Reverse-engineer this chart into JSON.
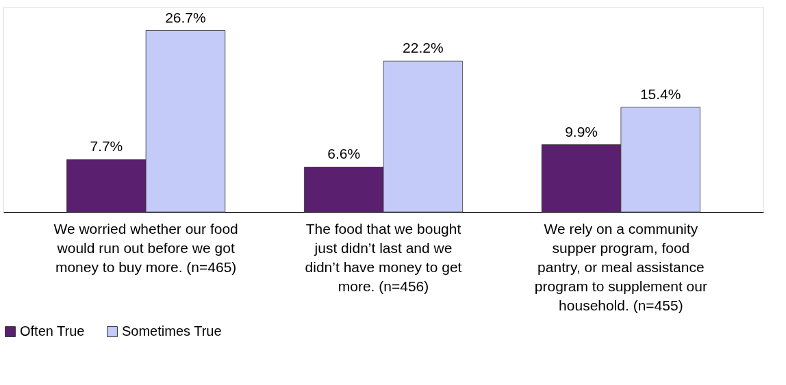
{
  "chart_data": {
    "type": "bar",
    "categories": [
      "We worried whether our food would run out before we got money to buy more. (n=465)",
      "The food that we bought just didn’t last and we didn’t have money to get more. (n=456)",
      "We rely on a community supper program, food pantry, or meal assistance program to supplement our household. (n=455)"
    ],
    "series": [
      {
        "name": "Often True",
        "color": "#5a1f6e",
        "values": [
          7.7,
          6.6,
          9.9
        ],
        "value_labels": [
          "7.7%",
          "6.6%",
          "9.9%"
        ]
      },
      {
        "name": "Sometimes True",
        "color": "#c5cbf8",
        "values": [
          26.7,
          22.2,
          15.4
        ],
        "value_labels": [
          "26.7%",
          "22.2%",
          "15.4%"
        ]
      }
    ],
    "legend": "bottom"
  }
}
